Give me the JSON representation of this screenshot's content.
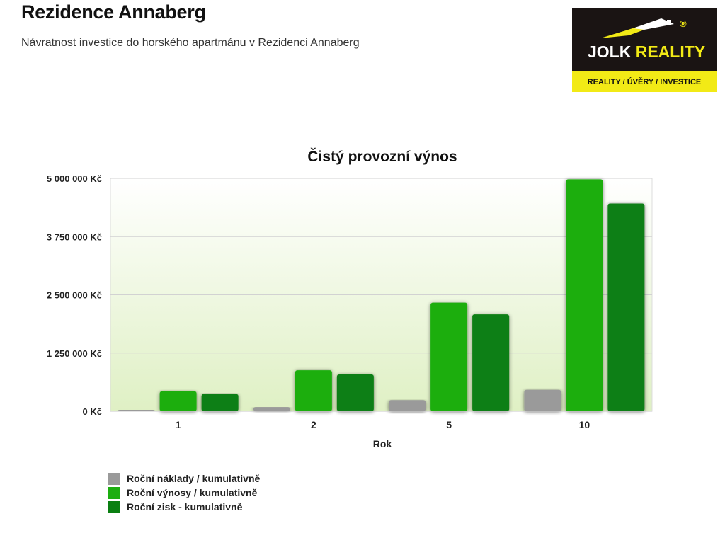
{
  "header": {
    "title": "Rezidence Annaberg",
    "subtitle": "Návratnost investice do horského apartmánu v Rezidenci Annaberg"
  },
  "logo": {
    "brand_part1": "JOLK",
    "brand_part2": "REALITY",
    "registered": "®",
    "tagline": "REALITY  /  ÚVĚRY  /  INVESTICE"
  },
  "chart_data": {
    "type": "bar",
    "title": "Čistý provozní výnos",
    "xlabel": "Rok",
    "ylabel": "",
    "categories": [
      "1",
      "2",
      "5",
      "10"
    ],
    "ylim": [
      0,
      5000000
    ],
    "yticks": [
      0,
      1250000,
      2500000,
      3750000,
      5000000
    ],
    "ytick_labels": [
      "0 Kč",
      "1 250 000 Kč",
      "2 500 000 Kč",
      "3 750 000 Kč",
      "5 000 000 Kč"
    ],
    "grid": true,
    "legend_position": "bottom-left",
    "series": [
      {
        "name": "Roční náklady / kumulativně",
        "color": "#9a9a9a",
        "values": [
          20000,
          90000,
          240000,
          460000
        ]
      },
      {
        "name": "Roční výnosy / kumulativně",
        "color": "#1cae10",
        "values": [
          430000,
          880000,
          2330000,
          4980000
        ]
      },
      {
        "name": "Roční zisk - kumulativně",
        "color": "#0a7f12",
        "values": [
          370000,
          790000,
          2080000,
          4460000
        ]
      }
    ]
  }
}
